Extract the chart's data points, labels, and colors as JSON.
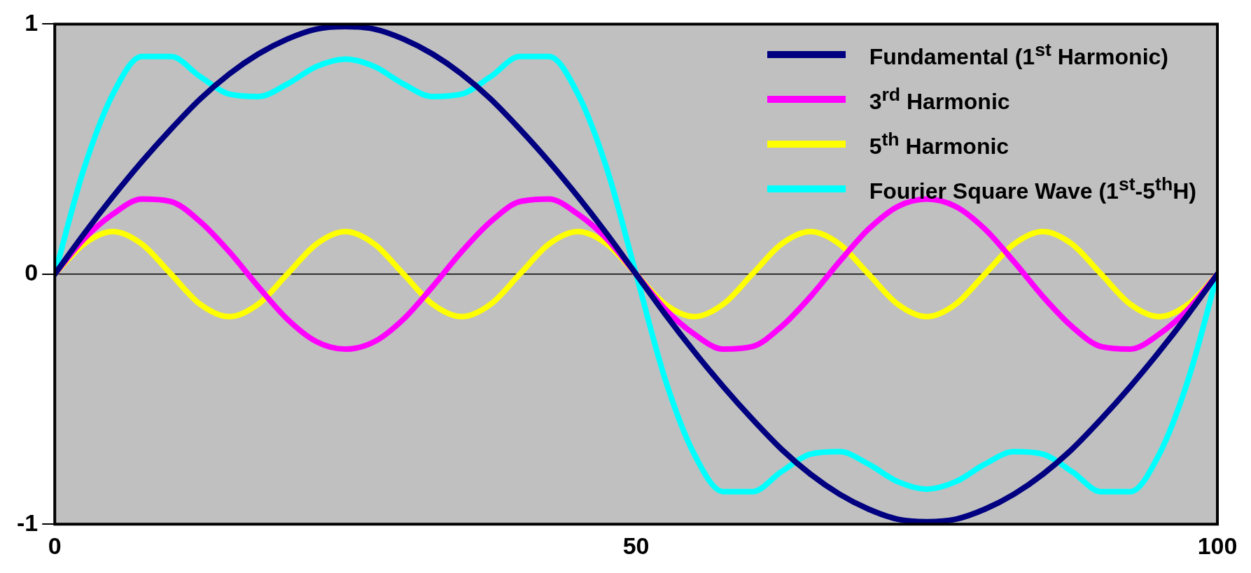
{
  "chart_data": {
    "type": "line",
    "x": [
      0,
      2.5,
      5,
      7.5,
      10,
      12.5,
      15,
      17.5,
      20,
      22.5,
      25,
      27.5,
      30,
      32.5,
      35,
      37.5,
      40,
      42.5,
      45,
      47.5,
      50,
      52.5,
      55,
      57.5,
      60,
      62.5,
      65,
      67.5,
      70,
      72.5,
      75,
      77.5,
      80,
      82.5,
      85,
      87.5,
      90,
      92.5,
      95,
      97.5,
      100
    ],
    "series": [
      {
        "name": "Fundamental (1$^{st}$ Harmonic)",
        "color": "#000080",
        "values": [
          0,
          0.16,
          0.31,
          0.45,
          0.58,
          0.7,
          0.8,
          0.88,
          0.94,
          0.98,
          0.99,
          0.98,
          0.94,
          0.88,
          0.8,
          0.7,
          0.58,
          0.45,
          0.31,
          0.16,
          0,
          -0.16,
          -0.31,
          -0.45,
          -0.58,
          -0.7,
          -0.8,
          -0.88,
          -0.94,
          -0.98,
          -0.99,
          -0.98,
          -0.94,
          -0.88,
          -0.8,
          -0.7,
          -0.58,
          -0.45,
          -0.31,
          -0.16,
          0
        ]
      },
      {
        "name": "3$^{rd}$ Harmonic",
        "color": "#ff00ff",
        "values": [
          0,
          0.14,
          0.24,
          0.3,
          0.29,
          0.21,
          0.09,
          -0.05,
          -0.18,
          -0.27,
          -0.3,
          -0.27,
          -0.18,
          -0.05,
          0.09,
          0.21,
          0.29,
          0.3,
          0.24,
          0.14,
          0,
          -0.14,
          -0.24,
          -0.3,
          -0.29,
          -0.21,
          -0.09,
          0.05,
          0.18,
          0.27,
          0.3,
          0.27,
          0.18,
          0.05,
          -0.09,
          -0.21,
          -0.29,
          -0.3,
          -0.24,
          -0.14,
          0
        ]
      },
      {
        "name": "5$^{th}$ Harmonic",
        "color": "#ffff00",
        "values": [
          0,
          0.12,
          0.17,
          0.12,
          0,
          -0.12,
          -0.17,
          -0.12,
          0,
          0.12,
          0.17,
          0.12,
          0,
          -0.12,
          -0.17,
          -0.12,
          0,
          0.12,
          0.17,
          0.12,
          0,
          -0.12,
          -0.17,
          -0.12,
          0,
          0.12,
          0.17,
          0.12,
          0,
          -0.12,
          -0.17,
          -0.12,
          0,
          0.12,
          0.17,
          0.12,
          0,
          -0.12,
          -0.17,
          -0.12,
          0
        ]
      },
      {
        "name": "Fourier Square Wave (1$^{st}$-5$^{th}$H)",
        "color": "#00ffff",
        "values": [
          0,
          0.42,
          0.72,
          0.87,
          0.87,
          0.79,
          0.72,
          0.71,
          0.76,
          0.83,
          0.86,
          0.83,
          0.76,
          0.71,
          0.72,
          0.79,
          0.87,
          0.87,
          0.72,
          0.42,
          0,
          -0.42,
          -0.72,
          -0.87,
          -0.87,
          -0.79,
          -0.72,
          -0.71,
          -0.76,
          -0.83,
          -0.86,
          -0.83,
          -0.76,
          -0.71,
          -0.72,
          -0.79,
          -0.87,
          -0.87,
          -0.72,
          -0.42,
          0
        ]
      }
    ],
    "xlim": [
      0,
      100
    ],
    "xticks": [
      0,
      50,
      100
    ],
    "ylim": [
      -1,
      1
    ],
    "yticks": [
      -1,
      0,
      1
    ],
    "ref_lines": [
      {
        "axis": "y",
        "value": 0,
        "color": "#000000"
      }
    ],
    "grid": false,
    "legend": "top right",
    "marker": "none",
    "line_style": "solid"
  }
}
